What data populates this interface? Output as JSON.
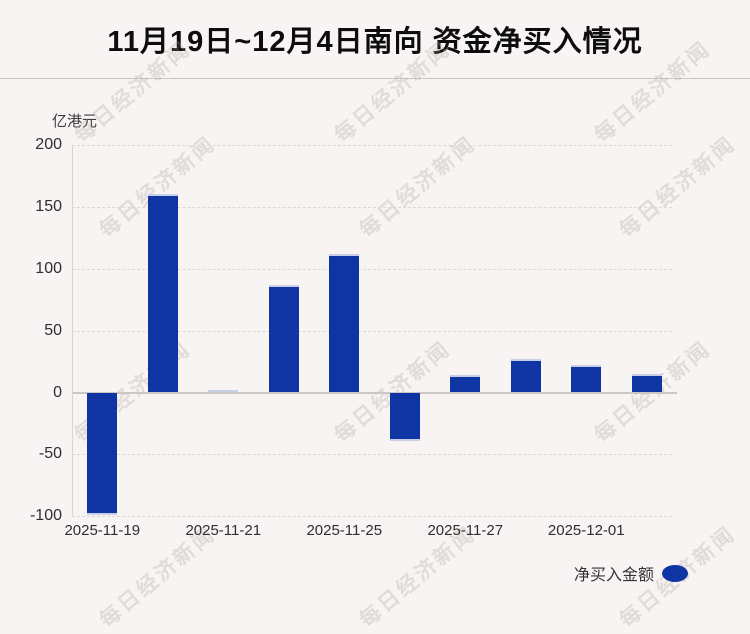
{
  "title": "11月19日~12月4日南向 资金净买入情况",
  "watermark": {
    "text": "每日经济新闻"
  },
  "colors": {
    "bar": "#0e35a3",
    "bar_top_edge": "#c8cfe9",
    "background": "#f8f4f3",
    "divider": "#c9c5c4",
    "grid": "#dcd8d7",
    "zero_line": "#cbc7c6",
    "axis_line": "#d8d4d3",
    "tick_text": "#2e2e2e",
    "title_text": "#0d0d0d",
    "watermark_text": "#a89c9c"
  },
  "legend": {
    "label": "净买入金额"
  },
  "chart_data": {
    "type": "bar",
    "title": "11月19日~12月4日南向 资金净买入情况",
    "xlabel": "",
    "ylabel": "亿港元",
    "categories": [
      "2025-11-19",
      "",
      "2025-11-21",
      "",
      "2025-11-25",
      "",
      "2025-11-27",
      "",
      "2025-12-01",
      ""
    ],
    "series": [
      {
        "name": "净买入金额",
        "values": [
          -99,
          160,
          2,
          87,
          112,
          -39,
          14,
          27,
          22,
          15
        ]
      }
    ],
    "ylim": [
      -100,
      200
    ],
    "yticks": [
      200,
      150,
      100,
      50,
      0,
      -50,
      -100
    ],
    "grid": "horizontal-dashed",
    "legend_position": "bottom-right"
  }
}
